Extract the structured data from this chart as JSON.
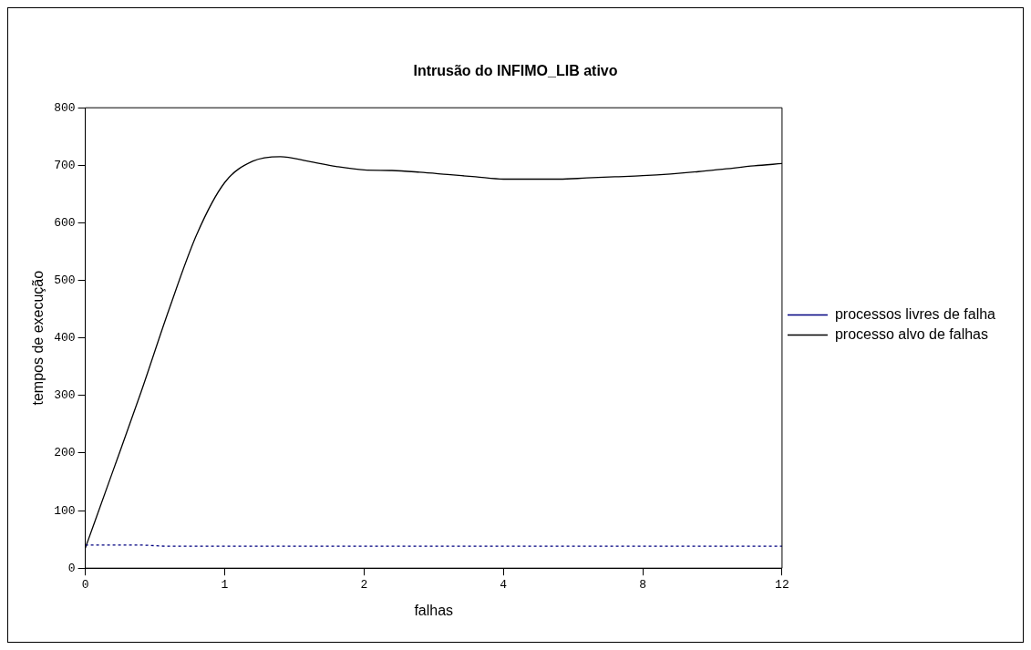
{
  "chart_data": {
    "type": "line",
    "title": "Intrusão do INFIMO_LIB ativo",
    "xlabel": "falhas",
    "ylabel": "tempos de execução",
    "categories": [
      "0",
      null,
      null,
      null,
      null,
      "1",
      null,
      null,
      null,
      null,
      "2",
      null,
      null,
      null,
      null,
      "4",
      null,
      null,
      null,
      null,
      "8",
      null,
      null,
      null,
      null,
      "12"
    ],
    "series": [
      {
        "name": "processos livres de falha",
        "color": "#000080",
        "line_style": "dotted",
        "values": [
          40,
          40,
          40,
          38,
          38,
          38,
          38,
          38,
          38,
          38,
          38,
          38,
          38,
          38,
          38,
          38,
          38,
          38,
          38,
          38,
          38,
          38,
          38,
          38,
          38,
          38
        ]
      },
      {
        "name": "processo alvo de falhas",
        "color": "#000000",
        "line_style": "solid",
        "values": [
          35,
          170,
          306,
          449,
          580,
          670,
          707,
          715,
          707,
          698,
          692,
          691,
          688,
          684,
          680,
          676,
          676,
          676,
          678,
          680,
          682,
          685,
          689,
          694,
          699,
          703
        ]
      }
    ],
    "ylim": [
      0,
      800
    ],
    "yticks": [
      0,
      100,
      200,
      300,
      400,
      500,
      600,
      700,
      800
    ],
    "grid": false,
    "legend": "right",
    "marker": "none"
  }
}
